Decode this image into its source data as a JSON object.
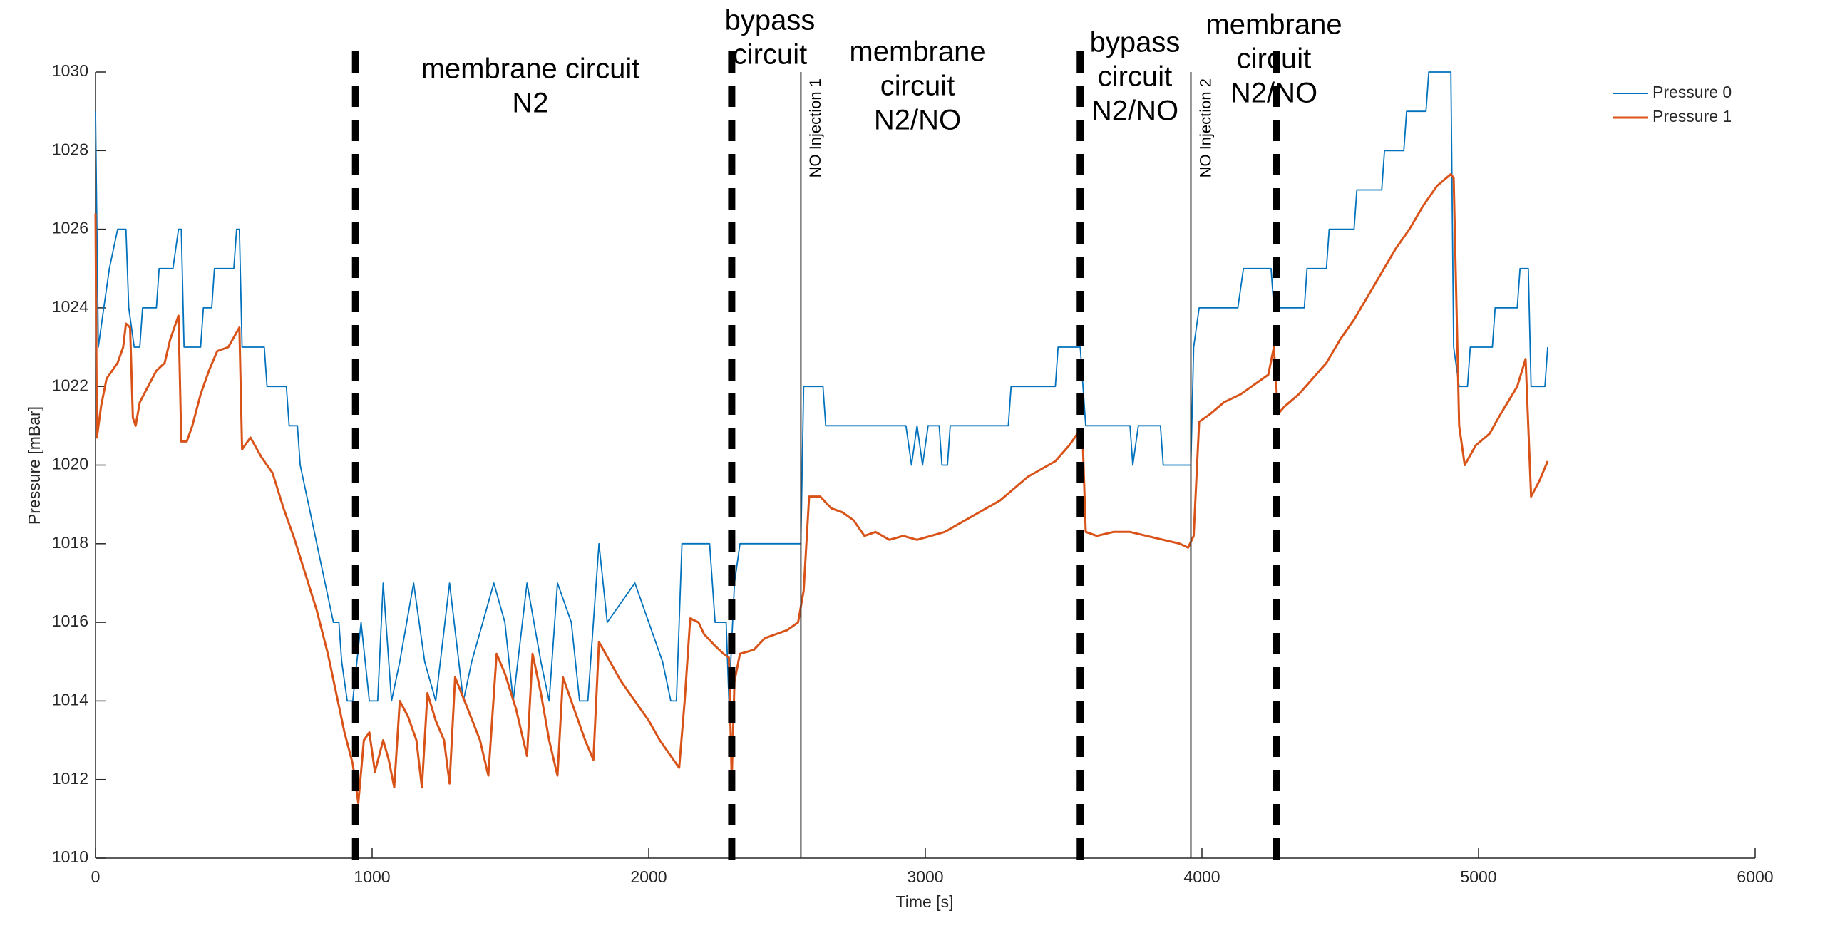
{
  "chart_data": {
    "type": "line",
    "xlabel": "Time [s]",
    "ylabel": "Pressure [mBar]",
    "xlim": [
      0,
      6000
    ],
    "xticks": [
      0,
      1000,
      2000,
      3000,
      4000,
      5000,
      6000
    ],
    "ylim": [
      1010,
      1030
    ],
    "yticks": [
      1010,
      1012,
      1014,
      1016,
      1018,
      1020,
      1022,
      1024,
      1026,
      1028,
      1030
    ],
    "legend": "northeast",
    "dividers": [
      940,
      2300,
      3560,
      4270
    ],
    "markers": [
      {
        "x": 2550,
        "label": "NO Injection 1"
      },
      {
        "x": 3960,
        "label": "NO Injection 2"
      }
    ],
    "regions": [
      [
        "membrane circuit",
        "N2"
      ],
      [
        "bypass",
        "circuit"
      ],
      [
        "membrane",
        "circuit",
        "N2/NO"
      ],
      [
        "bypass",
        "circuit",
        "N2/NO"
      ],
      [
        "membrane",
        "circuit",
        "N2/NO"
      ]
    ],
    "series": [
      {
        "name": "Pressure 0",
        "color": "#0072bd",
        "x": [
          0,
          10,
          30,
          50,
          80,
          110,
          120,
          140,
          160,
          170,
          220,
          230,
          280,
          300,
          310,
          320,
          380,
          390,
          420,
          430,
          500,
          510,
          520,
          530,
          610,
          620,
          690,
          700,
          730,
          740,
          770,
          800,
          830,
          860,
          880,
          890,
          910,
          930,
          960,
          990,
          1020,
          1040,
          1070,
          1100,
          1150,
          1190,
          1230,
          1280,
          1330,
          1360,
          1440,
          1480,
          1510,
          1560,
          1610,
          1640,
          1670,
          1720,
          1750,
          1780,
          1820,
          1850,
          1950,
          2000,
          2050,
          2080,
          2100,
          2120,
          2220,
          2240,
          2280,
          2290,
          2310,
          2330,
          2550,
          2560,
          2630,
          2640,
          2930,
          2950,
          2970,
          2990,
          3010,
          3050,
          3060,
          3080,
          3090,
          3300,
          3310,
          3470,
          3480,
          3560,
          3580,
          3740,
          3750,
          3770,
          3850,
          3860,
          3930,
          3960,
          3970,
          3990,
          4130,
          4150,
          4250,
          4260,
          4370,
          4380,
          4450,
          4460,
          4550,
          4560,
          4650,
          4660,
          4730,
          4740,
          4810,
          4820,
          4900,
          4910,
          4930,
          4960,
          4970,
          5050,
          5060,
          5140,
          5150,
          5180,
          5190,
          5240,
          5250
        ],
        "values": [
          1029,
          1023,
          1024,
          1025,
          1026,
          1026,
          1024,
          1023,
          1023,
          1024,
          1024,
          1025,
          1025,
          1026,
          1026,
          1023,
          1023,
          1024,
          1024,
          1025,
          1025,
          1026,
          1026,
          1023,
          1023,
          1022,
          1022,
          1021,
          1021,
          1020,
          1019,
          1018,
          1017,
          1016,
          1016,
          1015,
          1014,
          1014,
          1016,
          1014,
          1014,
          1017,
          1014,
          1015,
          1017,
          1015,
          1014,
          1017,
          1014,
          1015,
          1017,
          1016,
          1014,
          1017,
          1015,
          1014,
          1017,
          1016,
          1014,
          1014,
          1018,
          1016,
          1017,
          1016,
          1015,
          1014,
          1014,
          1018,
          1018,
          1016,
          1016,
          1014,
          1017,
          1018,
          1018,
          1022,
          1022,
          1021,
          1021,
          1020,
          1021,
          1020,
          1021,
          1021,
          1020,
          1020,
          1021,
          1021,
          1022,
          1022,
          1023,
          1023,
          1021,
          1021,
          1020,
          1021,
          1021,
          1020,
          1020,
          1020,
          1023,
          1024,
          1024,
          1025,
          1025,
          1024,
          1024,
          1025,
          1025,
          1026,
          1026,
          1027,
          1027,
          1028,
          1028,
          1029,
          1029,
          1030,
          1030,
          1023,
          1022,
          1022,
          1023,
          1023,
          1024,
          1024,
          1025,
          1025,
          1022,
          1022,
          1023
        ]
      },
      {
        "name": "Pressure 1",
        "color": "#d95319",
        "x": [
          0,
          5,
          20,
          40,
          60,
          80,
          100,
          110,
          125,
          135,
          145,
          160,
          190,
          220,
          250,
          270,
          300,
          310,
          330,
          350,
          380,
          410,
          440,
          480,
          520,
          530,
          560,
          600,
          640,
          680,
          720,
          760,
          800,
          840,
          870,
          900,
          930,
          950,
          970,
          990,
          1010,
          1040,
          1060,
          1080,
          1100,
          1130,
          1160,
          1180,
          1200,
          1230,
          1260,
          1280,
          1300,
          1340,
          1390,
          1420,
          1450,
          1480,
          1520,
          1560,
          1580,
          1610,
          1640,
          1670,
          1690,
          1730,
          1770,
          1800,
          1820,
          1860,
          1900,
          1950,
          2000,
          2040,
          2080,
          2110,
          2130,
          2150,
          2180,
          2200,
          2240,
          2270,
          2290,
          2300,
          2310,
          2330,
          2380,
          2420,
          2460,
          2500,
          2540,
          2560,
          2580,
          2620,
          2660,
          2700,
          2740,
          2780,
          2820,
          2870,
          2920,
          2970,
          3020,
          3070,
          3120,
          3170,
          3220,
          3270,
          3320,
          3370,
          3420,
          3470,
          3520,
          3550,
          3570,
          3580,
          3620,
          3680,
          3740,
          3800,
          3860,
          3920,
          3950,
          3970,
          3990,
          4030,
          4080,
          4140,
          4200,
          4240,
          4260,
          4275,
          4300,
          4350,
          4400,
          4450,
          4500,
          4550,
          4600,
          4650,
          4700,
          4750,
          4800,
          4850,
          4900,
          4910,
          4930,
          4950,
          4990,
          5040,
          5080,
          5140,
          5170,
          5190,
          5220,
          5250
        ],
        "values": [
          1026.4,
          1020.7,
          1021.5,
          1022.2,
          1022.4,
          1022.6,
          1023,
          1023.6,
          1023.5,
          1021.2,
          1021,
          1021.6,
          1022,
          1022.4,
          1022.6,
          1023.2,
          1023.8,
          1020.6,
          1020.6,
          1021,
          1021.8,
          1022.4,
          1022.9,
          1023,
          1023.5,
          1020.4,
          1020.7,
          1020.2,
          1019.8,
          1018.9,
          1018.1,
          1017.2,
          1016.3,
          1015.2,
          1014.2,
          1013.2,
          1012.4,
          1011.4,
          1013,
          1013.2,
          1012.2,
          1013,
          1012.5,
          1011.8,
          1014,
          1013.6,
          1013,
          1011.8,
          1014.2,
          1013.5,
          1013,
          1011.9,
          1014.6,
          1013.9,
          1013,
          1012.1,
          1015.2,
          1014.7,
          1013.8,
          1012.6,
          1015.2,
          1014.2,
          1013,
          1012.1,
          1014.6,
          1013.8,
          1013,
          1012.5,
          1015.5,
          1015,
          1014.5,
          1014,
          1013.5,
          1013,
          1012.6,
          1012.3,
          1014,
          1016.1,
          1016,
          1015.7,
          1015.4,
          1015.2,
          1015.1,
          1012,
          1014.5,
          1015.2,
          1015.3,
          1015.6,
          1015.7,
          1015.8,
          1016,
          1016.8,
          1019.2,
          1019.2,
          1018.9,
          1018.8,
          1018.6,
          1018.2,
          1018.3,
          1018.1,
          1018.2,
          1018.1,
          1018.2,
          1018.3,
          1018.5,
          1018.7,
          1018.9,
          1019.1,
          1019.4,
          1019.7,
          1019.9,
          1020.1,
          1020.5,
          1020.8,
          1020.4,
          1018.3,
          1018.2,
          1018.3,
          1018.3,
          1018.2,
          1018.1,
          1018,
          1017.9,
          1018.2,
          1021.1,
          1021.3,
          1021.6,
          1021.8,
          1022.1,
          1022.3,
          1023,
          1021.3,
          1021.5,
          1021.8,
          1022.2,
          1022.6,
          1023.2,
          1023.7,
          1024.3,
          1024.9,
          1025.5,
          1026,
          1026.6,
          1027.1,
          1027.4,
          1027.3,
          1021,
          1020,
          1020.5,
          1020.8,
          1021.3,
          1022,
          1022.7,
          1019.2,
          1019.6,
          1020.1
        ]
      }
    ]
  }
}
